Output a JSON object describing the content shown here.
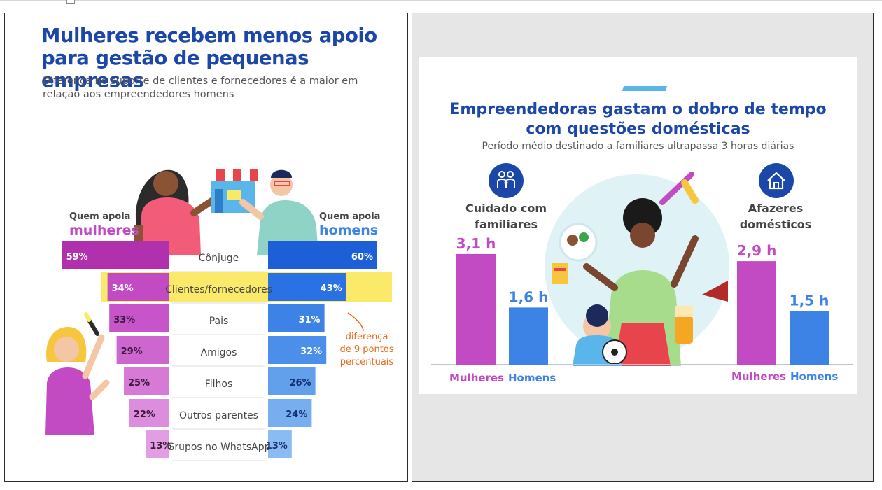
{
  "left_chart": {
    "title": "Mulheres recebem menos apoio para gestão de pequenas empresas",
    "subtitle": "Diferença no suporte de clientes e fornecedores é a maior em relação aos empreendedores homens",
    "women_label_small": "Quem apoia",
    "women_label_big": "mulheres",
    "men_label_small": "Quem apoia",
    "men_label_big": "homens",
    "annotation": [
      "diferença",
      "de 9 pontos",
      "percentuais"
    ]
  },
  "right_chart": {
    "title_line1": "Empreendedoras gastam o dobro de tempo",
    "title_line2": "com questões domésticas",
    "subtitle": "Período médio destinado a familiares ultrapassa 3 horas diárias",
    "group1_line1": "Cuidado com",
    "group1_line2": "familiares",
    "group2_line1": "Afazeres",
    "group2_line2": "domésticos",
    "legend_women": "Mulheres",
    "legend_men": "Homens"
  },
  "icons": {
    "family_icon": "family-icon",
    "house_icon": "house-icon"
  },
  "colors": {
    "title_blue": "#1b47a8",
    "women": "#c24bc4",
    "men": "#3d83e6",
    "highlight": "#fbe96a",
    "annotation": "#e86a19"
  },
  "chart_data": [
    {
      "type": "bar",
      "orientation": "horizontal-diverging",
      "categories": [
        "Cônjuge",
        "Clientes/fornecedores",
        "Pais",
        "Amigos",
        "Filhos",
        "Outros parentes",
        "Grupos no WhatsApp"
      ],
      "series": [
        {
          "name": "mulheres",
          "values": [
            59,
            34,
            33,
            29,
            25,
            22,
            13
          ],
          "labels": [
            "59%",
            "34%",
            "33%",
            "29%",
            "25%",
            "22%",
            "13%"
          ]
        },
        {
          "name": "homens",
          "values": [
            60,
            43,
            31,
            32,
            26,
            24,
            13
          ],
          "labels": [
            "60%",
            "43%",
            "31%",
            "32%",
            "26%",
            "24%",
            "13%"
          ]
        }
      ],
      "unit": "%",
      "highlight_category": "Clientes/fornecedores",
      "title": "Mulheres recebem menos apoio para gestão de pequenas empresas"
    },
    {
      "type": "bar",
      "categories": [
        "Cuidado com familiares",
        "Afazeres domésticos"
      ],
      "series": [
        {
          "name": "Mulheres",
          "values": [
            3.1,
            2.9
          ],
          "labels": [
            "3,1 h",
            "2,9 h"
          ]
        },
        {
          "name": "Homens",
          "values": [
            1.6,
            1.5
          ],
          "labels": [
            "1,6 h",
            "1,5 h"
          ]
        }
      ],
      "unit": "h",
      "title": "Empreendedoras gastam o dobro de tempo com questões domésticas"
    }
  ]
}
